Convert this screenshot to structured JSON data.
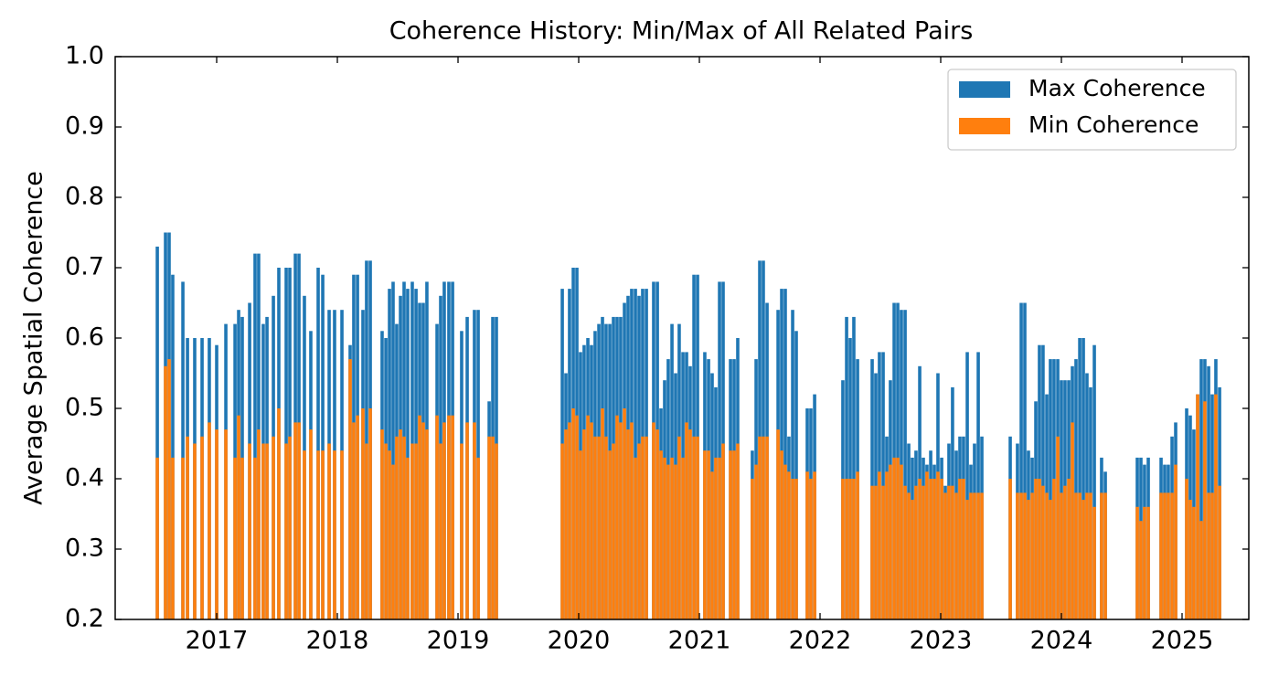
{
  "chart_data": {
    "type": "bar",
    "title": "Coherence History: Min/Max of All Related Pairs",
    "y_label": "Average Spatial Coherence",
    "xlim": [
      2016.159,
      2025.553
    ],
    "xticks": [
      2017,
      2018,
      2019,
      2020,
      2021,
      2022,
      2023,
      2024,
      2025
    ],
    "ylim": [
      0.2,
      1.0
    ],
    "yticks": [
      {
        "value": 0.2,
        "label": "0.2"
      },
      0.3,
      0.4,
      0.5,
      0.6,
      0.7,
      0.8,
      0.9,
      {
        "value": 1.0,
        "label": "1.0"
      }
    ],
    "legend": "upper right",
    "x": [
      2016.508,
      2016.576,
      2016.606,
      2016.636,
      2016.72,
      2016.758,
      2016.818,
      2016.879,
      2016.939,
      2017.0,
      2017.076,
      2017.152,
      2017.182,
      2017.212,
      2017.273,
      2017.318,
      2017.348,
      2017.386,
      2017.417,
      2017.47,
      2017.515,
      2017.576,
      2017.606,
      2017.652,
      2017.682,
      2017.727,
      2017.78,
      2017.841,
      2017.879,
      2017.932,
      2017.977,
      2018.038,
      2018.106,
      2018.136,
      2018.167,
      2018.212,
      2018.242,
      2018.273,
      2018.371,
      2018.402,
      2018.432,
      2018.462,
      2018.492,
      2018.523,
      2018.553,
      2018.583,
      2018.621,
      2018.652,
      2018.682,
      2018.712,
      2018.742,
      2018.826,
      2018.856,
      2018.886,
      2018.924,
      2018.955,
      2019.03,
      2019.076,
      2019.136,
      2019.167,
      2019.258,
      2019.288,
      2019.318,
      2019.864,
      2019.894,
      2019.924,
      2019.955,
      2019.985,
      2020.015,
      2020.045,
      2020.076,
      2020.106,
      2020.136,
      2020.167,
      2020.197,
      2020.227,
      2020.258,
      2020.288,
      2020.318,
      2020.348,
      2020.379,
      2020.409,
      2020.439,
      2020.47,
      2020.5,
      2020.53,
      2020.561,
      2020.621,
      2020.652,
      2020.682,
      2020.712,
      2020.742,
      2020.773,
      2020.803,
      2020.833,
      2020.864,
      2020.894,
      2020.924,
      2020.955,
      2020.985,
      2021.045,
      2021.076,
      2021.106,
      2021.136,
      2021.167,
      2021.197,
      2021.258,
      2021.288,
      2021.318,
      2021.439,
      2021.47,
      2021.5,
      2021.53,
      2021.561,
      2021.652,
      2021.682,
      2021.712,
      2021.742,
      2021.773,
      2021.803,
      2021.894,
      2021.924,
      2021.955,
      2022.189,
      2022.22,
      2022.25,
      2022.28,
      2022.311,
      2022.432,
      2022.462,
      2022.492,
      2022.523,
      2022.553,
      2022.583,
      2022.614,
      2022.644,
      2022.674,
      2022.705,
      2022.735,
      2022.765,
      2022.795,
      2022.826,
      2022.856,
      2022.886,
      2022.917,
      2022.947,
      2022.977,
      2023.008,
      2023.038,
      2023.068,
      2023.098,
      2023.129,
      2023.159,
      2023.189,
      2023.22,
      2023.25,
      2023.28,
      2023.311,
      2023.341,
      2023.576,
      2023.636,
      2023.667,
      2023.697,
      2023.727,
      2023.758,
      2023.788,
      2023.818,
      2023.848,
      2023.879,
      2023.909,
      2023.939,
      2023.97,
      2024.0,
      2024.03,
      2024.061,
      2024.091,
      2024.121,
      2024.152,
      2024.182,
      2024.212,
      2024.242,
      2024.273,
      2024.333,
      2024.364,
      2024.629,
      2024.659,
      2024.689,
      2024.72,
      2024.826,
      2024.856,
      2024.886,
      2024.917,
      2024.947,
      2025.038,
      2025.068,
      2025.098,
      2025.129,
      2025.159,
      2025.189,
      2025.22,
      2025.25,
      2025.28,
      2025.311
    ],
    "series": [
      {
        "name": "Max Coherence",
        "color": "#1f77b4",
        "values": [
          0.73,
          0.75,
          0.75,
          0.69,
          0.68,
          0.6,
          0.6,
          0.6,
          0.6,
          0.59,
          0.62,
          0.62,
          0.64,
          0.63,
          0.65,
          0.72,
          0.72,
          0.62,
          0.63,
          0.66,
          0.7,
          0.7,
          0.7,
          0.72,
          0.72,
          0.66,
          0.61,
          0.7,
          0.69,
          0.64,
          0.64,
          0.64,
          0.59,
          0.69,
          0.69,
          0.64,
          0.71,
          0.71,
          0.61,
          0.6,
          0.67,
          0.68,
          0.62,
          0.66,
          0.68,
          0.67,
          0.68,
          0.67,
          0.65,
          0.65,
          0.68,
          0.62,
          0.66,
          0.68,
          0.68,
          0.68,
          0.61,
          0.63,
          0.64,
          0.64,
          0.51,
          0.63,
          0.63,
          0.67,
          0.55,
          0.67,
          0.7,
          0.7,
          0.58,
          0.59,
          0.6,
          0.59,
          0.61,
          0.62,
          0.63,
          0.62,
          0.62,
          0.63,
          0.63,
          0.63,
          0.65,
          0.66,
          0.67,
          0.67,
          0.66,
          0.67,
          0.67,
          0.68,
          0.68,
          0.5,
          0.54,
          0.57,
          0.62,
          0.55,
          0.62,
          0.58,
          0.58,
          0.56,
          0.69,
          0.69,
          0.58,
          0.57,
          0.55,
          0.53,
          0.68,
          0.68,
          0.57,
          0.57,
          0.6,
          0.44,
          0.57,
          0.71,
          0.71,
          0.65,
          0.64,
          0.67,
          0.67,
          0.46,
          0.64,
          0.61,
          0.5,
          0.5,
          0.52,
          0.54,
          0.63,
          0.6,
          0.63,
          0.57,
          0.57,
          0.55,
          0.58,
          0.58,
          0.46,
          0.54,
          0.65,
          0.65,
          0.64,
          0.64,
          0.45,
          0.43,
          0.44,
          0.56,
          0.43,
          0.42,
          0.44,
          0.42,
          0.55,
          0.43,
          0.39,
          0.45,
          0.53,
          0.44,
          0.46,
          0.46,
          0.58,
          0.42,
          0.45,
          0.58,
          0.46,
          0.46,
          0.45,
          0.65,
          0.65,
          0.44,
          0.43,
          0.51,
          0.59,
          0.59,
          0.52,
          0.57,
          0.57,
          0.57,
          0.54,
          0.54,
          0.54,
          0.56,
          0.57,
          0.6,
          0.6,
          0.55,
          0.53,
          0.59,
          0.43,
          0.41,
          0.43,
          0.43,
          0.42,
          0.43,
          0.43,
          0.42,
          0.42,
          0.46,
          0.48,
          0.5,
          0.49,
          0.47,
          0.52,
          0.57,
          0.57,
          0.56,
          0.52,
          0.57,
          0.53
        ]
      },
      {
        "name": "Min Coherence",
        "color": "#ff7f0e",
        "values": [
          0.43,
          0.56,
          0.57,
          0.43,
          0.43,
          0.46,
          0.45,
          0.46,
          0.48,
          0.47,
          0.47,
          0.43,
          0.49,
          0.43,
          0.45,
          0.43,
          0.47,
          0.45,
          0.45,
          0.46,
          0.5,
          0.45,
          0.46,
          0.48,
          0.48,
          0.44,
          0.47,
          0.44,
          0.44,
          0.45,
          0.44,
          0.44,
          0.57,
          0.48,
          0.49,
          0.5,
          0.45,
          0.5,
          0.47,
          0.45,
          0.44,
          0.42,
          0.46,
          0.47,
          0.46,
          0.43,
          0.45,
          0.45,
          0.49,
          0.48,
          0.47,
          0.49,
          0.45,
          0.48,
          0.49,
          0.49,
          0.45,
          0.48,
          0.48,
          0.43,
          0.46,
          0.46,
          0.45,
          0.45,
          0.47,
          0.48,
          0.5,
          0.49,
          0.44,
          0.47,
          0.49,
          0.48,
          0.46,
          0.46,
          0.5,
          0.46,
          0.44,
          0.45,
          0.49,
          0.48,
          0.5,
          0.47,
          0.48,
          0.43,
          0.45,
          0.46,
          0.46,
          0.48,
          0.47,
          0.44,
          0.43,
          0.42,
          0.43,
          0.42,
          0.46,
          0.43,
          0.48,
          0.47,
          0.46,
          0.46,
          0.44,
          0.44,
          0.41,
          0.43,
          0.43,
          0.45,
          0.44,
          0.44,
          0.45,
          0.4,
          0.42,
          0.46,
          0.46,
          0.46,
          0.47,
          0.44,
          0.42,
          0.41,
          0.4,
          0.4,
          0.41,
          0.4,
          0.41,
          0.4,
          0.4,
          0.4,
          0.4,
          0.41,
          0.39,
          0.39,
          0.41,
          0.39,
          0.41,
          0.42,
          0.43,
          0.43,
          0.42,
          0.39,
          0.38,
          0.37,
          0.39,
          0.4,
          0.39,
          0.41,
          0.4,
          0.4,
          0.41,
          0.4,
          0.38,
          0.39,
          0.39,
          0.38,
          0.4,
          0.4,
          0.37,
          0.38,
          0.38,
          0.38,
          0.38,
          0.4,
          0.38,
          0.38,
          0.38,
          0.37,
          0.38,
          0.4,
          0.4,
          0.39,
          0.38,
          0.37,
          0.4,
          0.46,
          0.38,
          0.39,
          0.4,
          0.48,
          0.38,
          0.38,
          0.37,
          0.38,
          0.38,
          0.36,
          0.38,
          0.38,
          0.36,
          0.34,
          0.36,
          0.36,
          0.38,
          0.38,
          0.38,
          0.38,
          0.42,
          0.4,
          0.37,
          0.36,
          0.52,
          0.34,
          0.51,
          0.38,
          0.38,
          0.52,
          0.39
        ]
      }
    ]
  }
}
